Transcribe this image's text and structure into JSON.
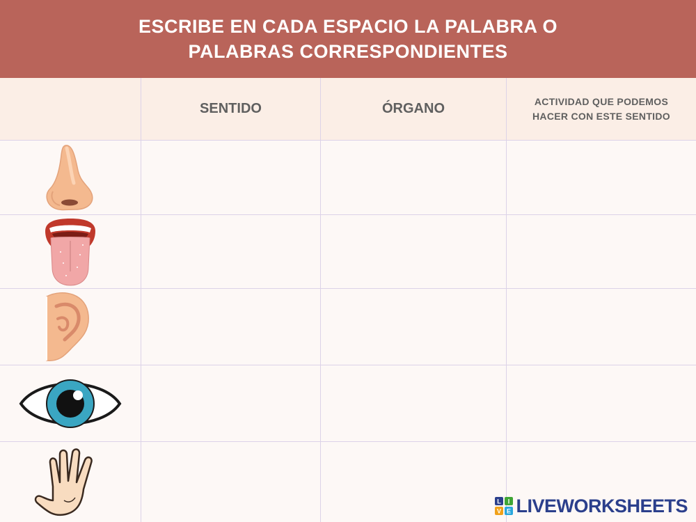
{
  "header": {
    "line1": "ESCRIBE EN CADA ESPACIO LA PALABRA O",
    "line2": "PALABRAS CORRESPONDIENTES"
  },
  "table": {
    "columns": [
      "",
      "SENTIDO",
      "ÓRGANO",
      "ACTIVIDAD QUE PODEMOS HACER CON ESTE SENTIDO"
    ],
    "activity_header_line1": "ACTIVIDAD QUE PODEMOS",
    "activity_header_line2": "HACER CON ESTE SENTIDO",
    "rows": [
      {
        "icon": "nose-icon",
        "sentido": "",
        "organo": "",
        "actividad": ""
      },
      {
        "icon": "tongue-icon",
        "sentido": "",
        "organo": "",
        "actividad": ""
      },
      {
        "icon": "ear-icon",
        "sentido": "",
        "organo": "",
        "actividad": ""
      },
      {
        "icon": "eye-icon",
        "sentido": "",
        "organo": "",
        "actividad": ""
      },
      {
        "icon": "hand-icon",
        "sentido": "",
        "organo": "",
        "actividad": ""
      }
    ]
  },
  "colors": {
    "header_bg": "#b9645a",
    "header_text": "#ffffff",
    "table_header_bg": "#fbeee6",
    "grid_line": "#dcd2e8",
    "brand": "#2b3f8c"
  },
  "watermark": {
    "logo_letters": "LIVE",
    "text": "LIVEWORKSHEETS"
  }
}
